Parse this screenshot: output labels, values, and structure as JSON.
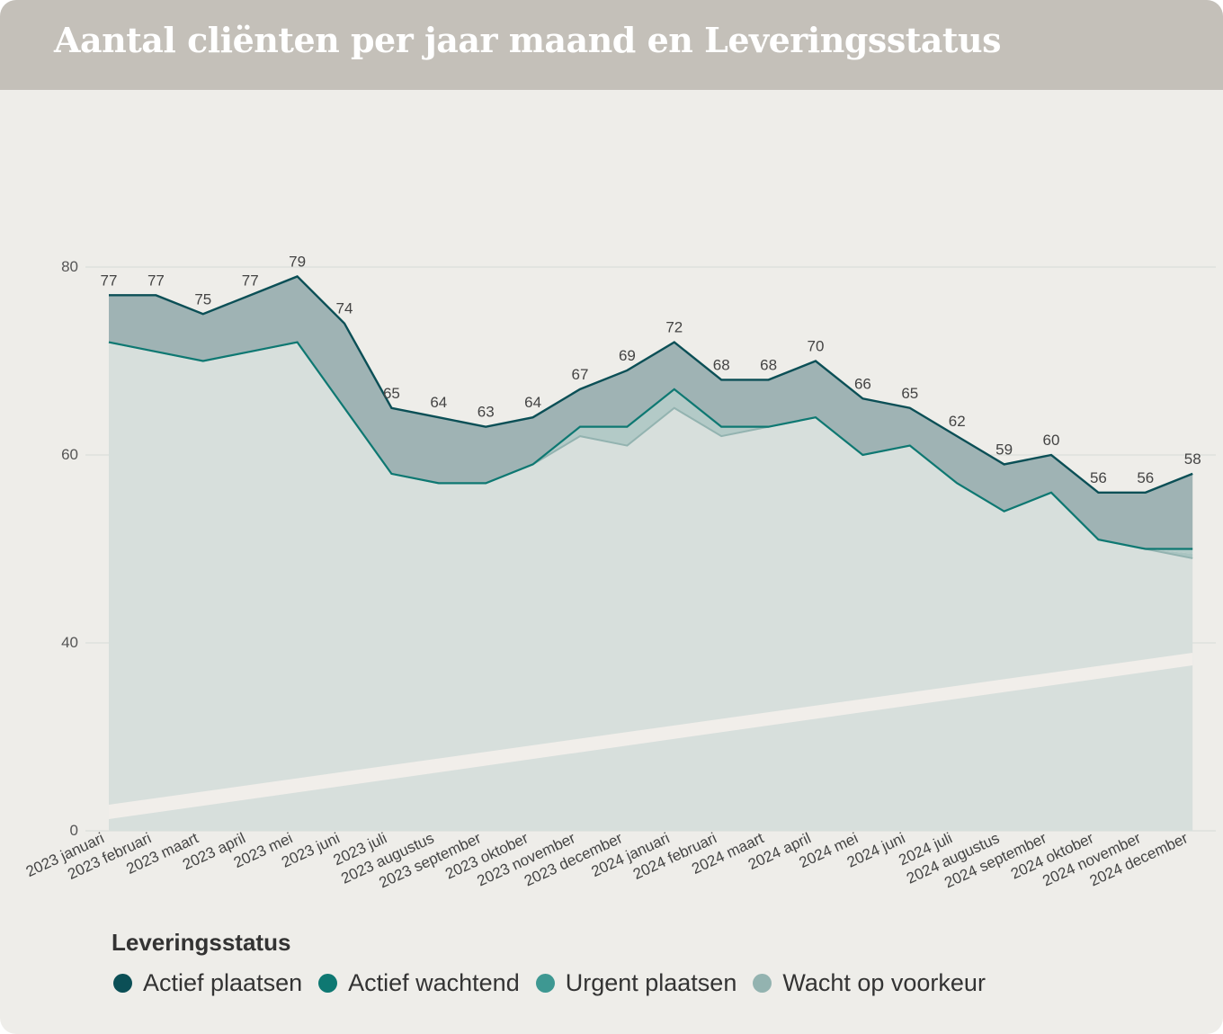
{
  "title": "Aantal cliënten per jaar maand en Leveringsstatus",
  "chart_data": {
    "type": "area",
    "categories": [
      "2023 januari",
      "2023 februari",
      "2023 maart",
      "2023 april",
      "2023 mei",
      "2023 juni",
      "2023 juli",
      "2023 augustus",
      "2023 september",
      "2023 oktober",
      "2023 november",
      "2023 december",
      "2024 januari",
      "2024 februari",
      "2024 maart",
      "2024 april",
      "2024 mei",
      "2024 juni",
      "2024 juli",
      "2024 augustus",
      "2024 september",
      "2024 oktober",
      "2024 november",
      "2024 december"
    ],
    "stacked_totals": {
      "Actief plaatsen": [
        77,
        77,
        75,
        77,
        79,
        74,
        65,
        64,
        63,
        64,
        67,
        69,
        72,
        68,
        68,
        70,
        66,
        65,
        62,
        59,
        60,
        56,
        56,
        58
      ],
      "Actief wachtend": [
        72,
        71,
        70,
        71,
        72,
        65,
        58,
        57,
        57,
        59,
        63,
        63,
        67,
        63,
        63,
        64,
        60,
        61,
        57,
        54,
        56,
        51,
        50,
        50
      ],
      "Urgent plaatsen": [
        72,
        71,
        70,
        71,
        72,
        65,
        58,
        57,
        57,
        59,
        62,
        61,
        65,
        62,
        63,
        64,
        60,
        61,
        57,
        54,
        56,
        51,
        50,
        49.5
      ],
      "Wacht op voorkeur": [
        72,
        71,
        70,
        71,
        72,
        65,
        58,
        57,
        57,
        59,
        62,
        61,
        65,
        62,
        63,
        64,
        60,
        61,
        57,
        54,
        56,
        51,
        50,
        49
      ]
    },
    "data_labels": [
      "77",
      "77",
      "75",
      "77",
      "79",
      "74",
      "65",
      "64",
      "63",
      "64",
      "67",
      "69",
      "72",
      "68",
      "68",
      "70",
      "66",
      "65",
      "62",
      "59",
      "60",
      "56",
      "56",
      "58"
    ],
    "y_ticks": [
      "0",
      "40",
      "60",
      "80"
    ],
    "ylim": [
      0,
      80
    ],
    "y_axis_break": true,
    "legend": {
      "title": "Leveringsstatus",
      "position": "bottom-left",
      "series": [
        {
          "name": "Actief plaatsen",
          "color": "#0b4f56"
        },
        {
          "name": "Actief wachtend",
          "color": "#0e7872"
        },
        {
          "name": "Urgent plaatsen",
          "color": "#3e9892"
        },
        {
          "name": "Wacht op voorkeur",
          "color": "#93b3b0"
        }
      ]
    },
    "colors": {
      "top_band": "#9fb3b4",
      "middle_band": "#b3cac7",
      "bottom_band": "#d7dfdc",
      "grid": "#d6dad6",
      "break": "#f1eeea"
    }
  }
}
